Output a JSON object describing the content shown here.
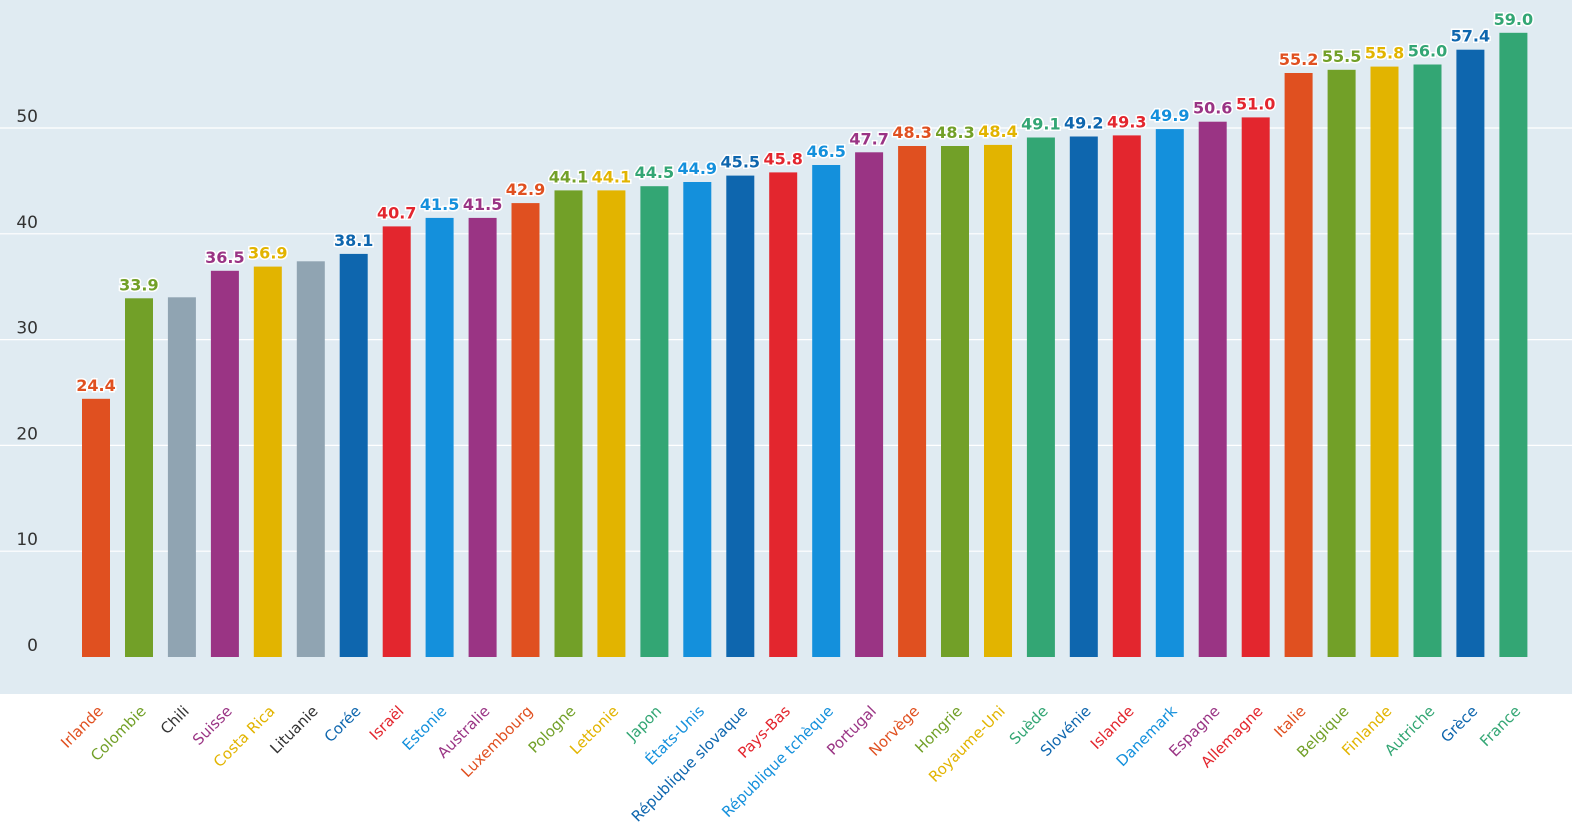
{
  "chart_data": {
    "type": "bar",
    "title": "",
    "xlabel": "",
    "ylabel": "",
    "ylim": [
      0,
      60
    ],
    "yticks": [
      0,
      10,
      20,
      30,
      40,
      50
    ],
    "grid": true,
    "legend": "none",
    "categories": [
      "Irlande",
      "Colombie",
      "Chili",
      "Suisse",
      "Costa Rica",
      "Lituanie",
      "Corée",
      "Israël",
      "Estonie",
      "Australie",
      "Luxembourg",
      "Pologne",
      "Lettonie",
      "Japon",
      "États-Unis",
      "République slovaque",
      "Pays-Bas",
      "République tchèque",
      "Portugal",
      "Norvège",
      "Hongrie",
      "Royaume-Uni",
      "Suède",
      "Slovénie",
      "Islande",
      "Danemark",
      "Espagne",
      "Allemagne",
      "Italie",
      "Belgique",
      "Finlande",
      "Autriche",
      "Grèce",
      "France"
    ],
    "values": [
      24.4,
      33.9,
      34.0,
      36.5,
      36.9,
      37.4,
      38.1,
      40.7,
      41.5,
      41.5,
      42.9,
      44.1,
      44.1,
      44.5,
      44.9,
      45.5,
      45.8,
      46.5,
      47.7,
      48.3,
      48.3,
      48.4,
      49.1,
      49.2,
      49.3,
      49.9,
      50.6,
      51.0,
      55.2,
      55.5,
      55.8,
      56.0,
      57.4,
      59.0
    ],
    "value_labels": [
      "24.4",
      "33.9",
      "",
      "36.5",
      "36.9",
      "",
      "38.1",
      "40.7",
      "41.5",
      "41.5",
      "42.9",
      "44.1",
      "44.1",
      "44.5",
      "44.9",
      "45.5",
      "45.8",
      "46.5",
      "47.7",
      "48.3",
      "48.3",
      "48.4",
      "49.1",
      "49.2",
      "49.3",
      "49.9",
      "50.6",
      "51.0",
      "55.2",
      "55.5",
      "55.8",
      "56.0",
      "57.4",
      "59.0"
    ],
    "colors": [
      "#e05020",
      "#72a028",
      "#90a4b2",
      "#9a3484",
      "#e2b400",
      "#90a4b2",
      "#0e66ae",
      "#e3262e",
      "#1490dc",
      "#9a3484",
      "#e05020",
      "#72a028",
      "#e2b400",
      "#33a674",
      "#1490dc",
      "#0e66ae",
      "#e3262e",
      "#1490dc",
      "#9a3484",
      "#e05020",
      "#72a028",
      "#e2b400",
      "#33a674",
      "#0e66ae",
      "#e3262e",
      "#1490dc",
      "#9a3484",
      "#e3262e",
      "#e05020",
      "#72a028",
      "#e2b400",
      "#33a674",
      "#0e66ae",
      "#33a674"
    ],
    "label_colors": [
      "#e05020",
      "#72a028",
      "#333333",
      "#9a3484",
      "#e2b400",
      "#333333",
      "#0e66ae",
      "#e3262e",
      "#1490dc",
      "#9a3484",
      "#e05020",
      "#72a028",
      "#e2b400",
      "#33a674",
      "#1490dc",
      "#0e66ae",
      "#e3262e",
      "#1490dc",
      "#9a3484",
      "#e05020",
      "#72a028",
      "#e2b400",
      "#33a674",
      "#0e66ae",
      "#e3262e",
      "#1490dc",
      "#9a3484",
      "#e3262e",
      "#e05020",
      "#72a028",
      "#e2b400",
      "#33a674",
      "#0e66ae",
      "#33a674"
    ],
    "plot_background": "#e0ebf2",
    "gridline_color": "#ffffff"
  }
}
